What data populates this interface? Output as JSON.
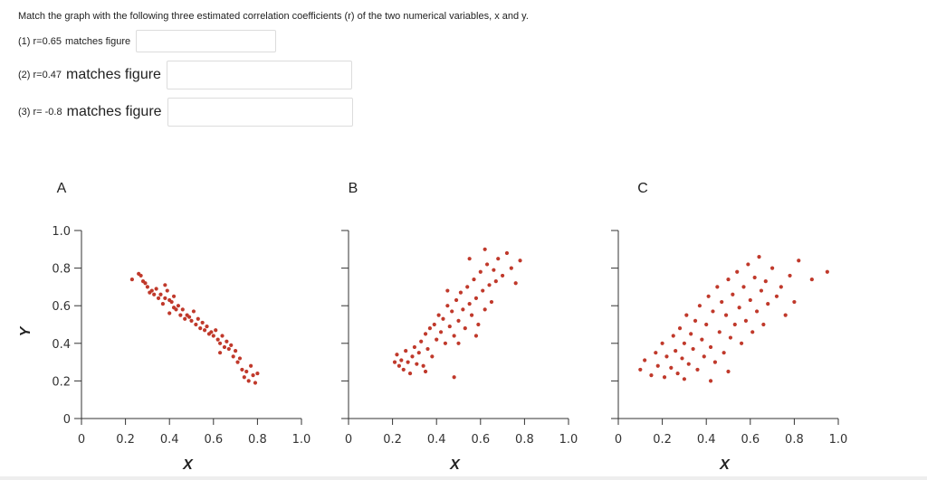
{
  "question": "Match the graph with the following three estimated correlation coefficients (r) of the two numerical variables, x and y.",
  "items": [
    {
      "prefix": "(1) r=0.65",
      "text": "matches figure",
      "answer": ""
    },
    {
      "prefix": "(2) r=0.47",
      "text": "matches figure",
      "answer": ""
    },
    {
      "prefix": "(3) r= -0.8",
      "text": "matches figure",
      "answer": ""
    }
  ],
  "colors": {
    "points": "#c0392b",
    "axis": "#333333"
  },
  "chart_data": [
    {
      "type": "scatter",
      "panel": "A",
      "xlabel": "X",
      "ylabel": "Y",
      "xlim": [
        0,
        1.0
      ],
      "ylim": [
        0,
        1.0
      ],
      "xticks": [
        "0",
        "0.2",
        "0.4",
        "0.6",
        "0.8",
        "1.0"
      ],
      "yticks": [
        "0",
        "0.2",
        "0.4",
        "0.6",
        "0.8",
        "1.0"
      ],
      "points": [
        [
          0.23,
          0.74
        ],
        [
          0.26,
          0.77
        ],
        [
          0.27,
          0.76
        ],
        [
          0.28,
          0.73
        ],
        [
          0.29,
          0.72
        ],
        [
          0.3,
          0.7
        ],
        [
          0.31,
          0.67
        ],
        [
          0.32,
          0.68
        ],
        [
          0.33,
          0.66
        ],
        [
          0.34,
          0.69
        ],
        [
          0.35,
          0.64
        ],
        [
          0.36,
          0.66
        ],
        [
          0.37,
          0.61
        ],
        [
          0.38,
          0.64
        ],
        [
          0.39,
          0.68
        ],
        [
          0.4,
          0.63
        ],
        [
          0.4,
          0.56
        ],
        [
          0.41,
          0.62
        ],
        [
          0.42,
          0.59
        ],
        [
          0.43,
          0.58
        ],
        [
          0.44,
          0.6
        ],
        [
          0.45,
          0.55
        ],
        [
          0.46,
          0.58
        ],
        [
          0.47,
          0.53
        ],
        [
          0.48,
          0.55
        ],
        [
          0.49,
          0.54
        ],
        [
          0.5,
          0.52
        ],
        [
          0.51,
          0.57
        ],
        [
          0.52,
          0.5
        ],
        [
          0.53,
          0.53
        ],
        [
          0.54,
          0.48
        ],
        [
          0.55,
          0.51
        ],
        [
          0.56,
          0.47
        ],
        [
          0.57,
          0.49
        ],
        [
          0.58,
          0.45
        ],
        [
          0.59,
          0.46
        ],
        [
          0.6,
          0.44
        ],
        [
          0.61,
          0.47
        ],
        [
          0.62,
          0.42
        ],
        [
          0.63,
          0.4
        ],
        [
          0.64,
          0.44
        ],
        [
          0.65,
          0.38
        ],
        [
          0.66,
          0.41
        ],
        [
          0.67,
          0.37
        ],
        [
          0.68,
          0.39
        ],
        [
          0.69,
          0.33
        ],
        [
          0.7,
          0.36
        ],
        [
          0.71,
          0.3
        ],
        [
          0.72,
          0.32
        ],
        [
          0.73,
          0.26
        ],
        [
          0.74,
          0.22
        ],
        [
          0.75,
          0.25
        ],
        [
          0.76,
          0.2
        ],
        [
          0.77,
          0.28
        ],
        [
          0.78,
          0.23
        ],
        [
          0.79,
          0.19
        ],
        [
          0.8,
          0.24
        ],
        [
          0.38,
          0.71
        ],
        [
          0.42,
          0.65
        ],
        [
          0.63,
          0.35
        ]
      ]
    },
    {
      "type": "scatter",
      "panel": "B",
      "xlabel": "X",
      "ylabel": "",
      "xlim": [
        0,
        1.0
      ],
      "ylim": [
        0,
        1.0
      ],
      "xticks": [
        "0",
        "0.2",
        "0.4",
        "0.6",
        "0.8",
        "1.0"
      ],
      "points": [
        [
          0.21,
          0.3
        ],
        [
          0.22,
          0.34
        ],
        [
          0.23,
          0.28
        ],
        [
          0.24,
          0.31
        ],
        [
          0.25,
          0.26
        ],
        [
          0.26,
          0.36
        ],
        [
          0.27,
          0.3
        ],
        [
          0.28,
          0.24
        ],
        [
          0.29,
          0.33
        ],
        [
          0.3,
          0.38
        ],
        [
          0.31,
          0.29
        ],
        [
          0.32,
          0.35
        ],
        [
          0.33,
          0.41
        ],
        [
          0.34,
          0.28
        ],
        [
          0.35,
          0.45
        ],
        [
          0.36,
          0.37
        ],
        [
          0.37,
          0.48
        ],
        [
          0.38,
          0.33
        ],
        [
          0.39,
          0.5
        ],
        [
          0.4,
          0.42
        ],
        [
          0.41,
          0.55
        ],
        [
          0.42,
          0.46
        ],
        [
          0.43,
          0.53
        ],
        [
          0.44,
          0.4
        ],
        [
          0.45,
          0.6
        ],
        [
          0.46,
          0.49
        ],
        [
          0.47,
          0.57
        ],
        [
          0.48,
          0.44
        ],
        [
          0.49,
          0.63
        ],
        [
          0.5,
          0.52
        ],
        [
          0.51,
          0.67
        ],
        [
          0.52,
          0.58
        ],
        [
          0.53,
          0.48
        ],
        [
          0.54,
          0.7
        ],
        [
          0.55,
          0.61
        ],
        [
          0.56,
          0.55
        ],
        [
          0.57,
          0.74
        ],
        [
          0.58,
          0.64
        ],
        [
          0.59,
          0.5
        ],
        [
          0.6,
          0.78
        ],
        [
          0.61,
          0.68
        ],
        [
          0.62,
          0.58
        ],
        [
          0.63,
          0.82
        ],
        [
          0.64,
          0.71
        ],
        [
          0.65,
          0.62
        ],
        [
          0.66,
          0.79
        ],
        [
          0.67,
          0.73
        ],
        [
          0.68,
          0.85
        ],
        [
          0.7,
          0.76
        ],
        [
          0.72,
          0.88
        ],
        [
          0.74,
          0.8
        ],
        [
          0.76,
          0.72
        ],
        [
          0.78,
          0.84
        ],
        [
          0.45,
          0.68
        ],
        [
          0.5,
          0.4
        ],
        [
          0.55,
          0.85
        ],
        [
          0.58,
          0.44
        ],
        [
          0.62,
          0.9
        ],
        [
          0.48,
          0.22
        ],
        [
          0.35,
          0.25
        ]
      ]
    },
    {
      "type": "scatter",
      "panel": "C",
      "xlabel": "X",
      "ylabel": "",
      "xlim": [
        0,
        1.0
      ],
      "ylim": [
        0,
        1.0
      ],
      "xticks": [
        "0",
        "0.2",
        "0.4",
        "0.6",
        "0.8",
        "1.0"
      ],
      "points": [
        [
          0.1,
          0.26
        ],
        [
          0.12,
          0.31
        ],
        [
          0.15,
          0.23
        ],
        [
          0.17,
          0.35
        ],
        [
          0.18,
          0.28
        ],
        [
          0.2,
          0.4
        ],
        [
          0.21,
          0.22
        ],
        [
          0.22,
          0.33
        ],
        [
          0.24,
          0.27
        ],
        [
          0.25,
          0.44
        ],
        [
          0.26,
          0.36
        ],
        [
          0.27,
          0.24
        ],
        [
          0.28,
          0.48
        ],
        [
          0.29,
          0.32
        ],
        [
          0.3,
          0.4
        ],
        [
          0.31,
          0.55
        ],
        [
          0.32,
          0.29
        ],
        [
          0.33,
          0.45
        ],
        [
          0.34,
          0.37
        ],
        [
          0.35,
          0.52
        ],
        [
          0.36,
          0.26
        ],
        [
          0.37,
          0.6
        ],
        [
          0.38,
          0.42
        ],
        [
          0.39,
          0.33
        ],
        [
          0.4,
          0.5
        ],
        [
          0.41,
          0.65
        ],
        [
          0.42,
          0.38
        ],
        [
          0.43,
          0.57
        ],
        [
          0.44,
          0.3
        ],
        [
          0.45,
          0.7
        ],
        [
          0.46,
          0.46
        ],
        [
          0.47,
          0.62
        ],
        [
          0.48,
          0.35
        ],
        [
          0.49,
          0.55
        ],
        [
          0.5,
          0.74
        ],
        [
          0.51,
          0.43
        ],
        [
          0.52,
          0.66
        ],
        [
          0.53,
          0.5
        ],
        [
          0.54,
          0.78
        ],
        [
          0.55,
          0.59
        ],
        [
          0.56,
          0.4
        ],
        [
          0.57,
          0.7
        ],
        [
          0.58,
          0.52
        ],
        [
          0.59,
          0.82
        ],
        [
          0.6,
          0.63
        ],
        [
          0.61,
          0.46
        ],
        [
          0.62,
          0.75
        ],
        [
          0.63,
          0.57
        ],
        [
          0.64,
          0.86
        ],
        [
          0.65,
          0.68
        ],
        [
          0.66,
          0.5
        ],
        [
          0.67,
          0.73
        ],
        [
          0.68,
          0.61
        ],
        [
          0.7,
          0.8
        ],
        [
          0.72,
          0.65
        ],
        [
          0.74,
          0.7
        ],
        [
          0.76,
          0.55
        ],
        [
          0.78,
          0.76
        ],
        [
          0.8,
          0.62
        ],
        [
          0.82,
          0.84
        ],
        [
          0.88,
          0.74
        ],
        [
          0.95,
          0.78
        ],
        [
          0.5,
          0.25
        ],
        [
          0.42,
          0.2
        ],
        [
          0.3,
          0.21
        ]
      ]
    }
  ]
}
